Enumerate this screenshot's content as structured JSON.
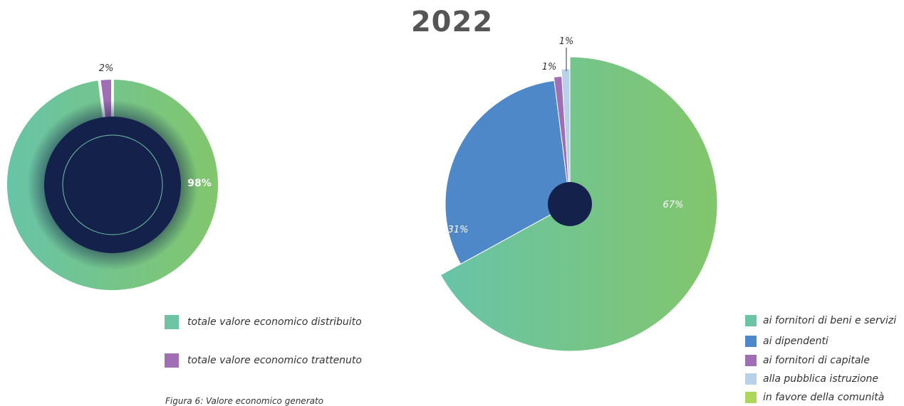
{
  "title": "2022",
  "caption": "Figura 6: Valore economico generato",
  "chart_data": [
    {
      "type": "pie",
      "style": "donut",
      "categories": [
        "totale valore economico distribuito",
        "totale valore economico trattenuto"
      ],
      "values": [
        98,
        2
      ],
      "labels": [
        "98%",
        "2%"
      ],
      "colors": [
        "#6cc4a4",
        "#a06eb4"
      ],
      "center_color": "#14214a",
      "legend_placement": "bottom-right"
    },
    {
      "type": "pie",
      "style": "exploded",
      "categories": [
        "ai fornitori di beni e servizi",
        "ai dipendenti",
        "ai fornitori di capitale",
        "alla pubblica istruzione",
        "in favore della comunità"
      ],
      "values": [
        67,
        31,
        1,
        1,
        0
      ],
      "labels": [
        "67%",
        "31%",
        "1%",
        "1%",
        ""
      ],
      "colors": [
        "#6cc4a4",
        "#4f88c8",
        "#a06eb4",
        "#b8d0e8",
        "#aed65a"
      ],
      "center_color": "#14214a",
      "legend_placement": "bottom-right"
    }
  ]
}
